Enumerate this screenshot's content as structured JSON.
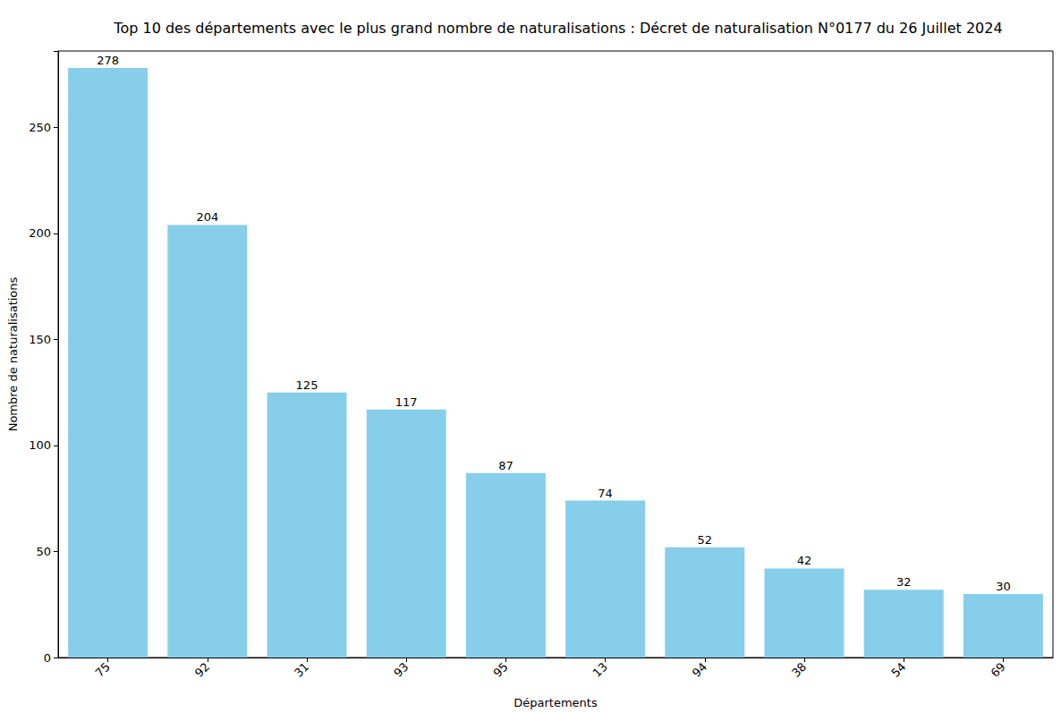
{
  "chart_data": {
    "type": "bar",
    "title": "Top 10 des départements avec le plus grand nombre de naturalisations : Décret de naturalisation N°0177 du 26 Juillet 2024",
    "x_label": "Départements",
    "y_label": "Nombre de naturalisations",
    "categories": [
      "75",
      "92",
      "31",
      "93",
      "95",
      "13",
      "94",
      "38",
      "54",
      "69"
    ],
    "values": [
      278,
      204,
      125,
      117,
      87,
      74,
      52,
      42,
      32,
      30
    ],
    "color": "#87ceeb",
    "ylim": [
      0,
      286
    ],
    "yticks": [
      0,
      50,
      100,
      150,
      200,
      250
    ],
    "grid": false,
    "data_labels": true
  }
}
